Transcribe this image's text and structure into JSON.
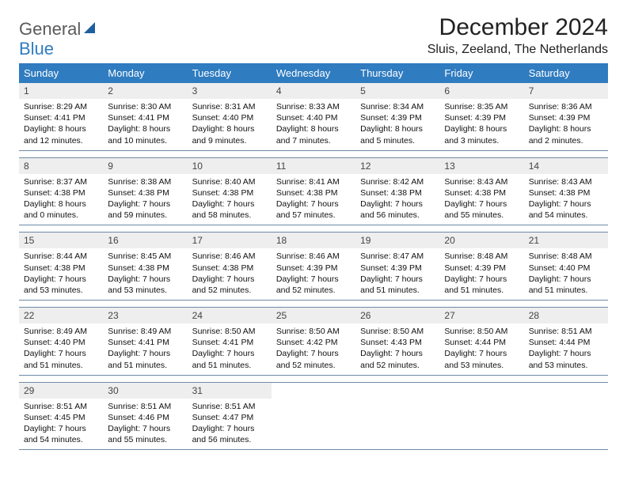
{
  "logo": {
    "general": "General",
    "blue": "Blue"
  },
  "title": "December 2024",
  "location": "Sluis, Zeeland, The Netherlands",
  "colors": {
    "header_bg": "#2f7cc0",
    "header_text": "#ffffff",
    "daynum_bg": "#eeeeee",
    "daynum_text": "#444444",
    "rule": "#6d8aa8",
    "body_text": "#111111",
    "logo_general": "#5a5a5a",
    "logo_blue": "#2f7cc0",
    "logo_shape": "#1e5f9e"
  },
  "dow": [
    "Sunday",
    "Monday",
    "Tuesday",
    "Wednesday",
    "Thursday",
    "Friday",
    "Saturday"
  ],
  "weeks": [
    [
      {
        "n": "1",
        "sr": "8:29 AM",
        "ss": "4:41 PM",
        "dl": "8 hours and 12 minutes."
      },
      {
        "n": "2",
        "sr": "8:30 AM",
        "ss": "4:41 PM",
        "dl": "8 hours and 10 minutes."
      },
      {
        "n": "3",
        "sr": "8:31 AM",
        "ss": "4:40 PM",
        "dl": "8 hours and 9 minutes."
      },
      {
        "n": "4",
        "sr": "8:33 AM",
        "ss": "4:40 PM",
        "dl": "8 hours and 7 minutes."
      },
      {
        "n": "5",
        "sr": "8:34 AM",
        "ss": "4:39 PM",
        "dl": "8 hours and 5 minutes."
      },
      {
        "n": "6",
        "sr": "8:35 AM",
        "ss": "4:39 PM",
        "dl": "8 hours and 3 minutes."
      },
      {
        "n": "7",
        "sr": "8:36 AM",
        "ss": "4:39 PM",
        "dl": "8 hours and 2 minutes."
      }
    ],
    [
      {
        "n": "8",
        "sr": "8:37 AM",
        "ss": "4:38 PM",
        "dl": "8 hours and 0 minutes."
      },
      {
        "n": "9",
        "sr": "8:38 AM",
        "ss": "4:38 PM",
        "dl": "7 hours and 59 minutes."
      },
      {
        "n": "10",
        "sr": "8:40 AM",
        "ss": "4:38 PM",
        "dl": "7 hours and 58 minutes."
      },
      {
        "n": "11",
        "sr": "8:41 AM",
        "ss": "4:38 PM",
        "dl": "7 hours and 57 minutes."
      },
      {
        "n": "12",
        "sr": "8:42 AM",
        "ss": "4:38 PM",
        "dl": "7 hours and 56 minutes."
      },
      {
        "n": "13",
        "sr": "8:43 AM",
        "ss": "4:38 PM",
        "dl": "7 hours and 55 minutes."
      },
      {
        "n": "14",
        "sr": "8:43 AM",
        "ss": "4:38 PM",
        "dl": "7 hours and 54 minutes."
      }
    ],
    [
      {
        "n": "15",
        "sr": "8:44 AM",
        "ss": "4:38 PM",
        "dl": "7 hours and 53 minutes."
      },
      {
        "n": "16",
        "sr": "8:45 AM",
        "ss": "4:38 PM",
        "dl": "7 hours and 53 minutes."
      },
      {
        "n": "17",
        "sr": "8:46 AM",
        "ss": "4:38 PM",
        "dl": "7 hours and 52 minutes."
      },
      {
        "n": "18",
        "sr": "8:46 AM",
        "ss": "4:39 PM",
        "dl": "7 hours and 52 minutes."
      },
      {
        "n": "19",
        "sr": "8:47 AM",
        "ss": "4:39 PM",
        "dl": "7 hours and 51 minutes."
      },
      {
        "n": "20",
        "sr": "8:48 AM",
        "ss": "4:39 PM",
        "dl": "7 hours and 51 minutes."
      },
      {
        "n": "21",
        "sr": "8:48 AM",
        "ss": "4:40 PM",
        "dl": "7 hours and 51 minutes."
      }
    ],
    [
      {
        "n": "22",
        "sr": "8:49 AM",
        "ss": "4:40 PM",
        "dl": "7 hours and 51 minutes."
      },
      {
        "n": "23",
        "sr": "8:49 AM",
        "ss": "4:41 PM",
        "dl": "7 hours and 51 minutes."
      },
      {
        "n": "24",
        "sr": "8:50 AM",
        "ss": "4:41 PM",
        "dl": "7 hours and 51 minutes."
      },
      {
        "n": "25",
        "sr": "8:50 AM",
        "ss": "4:42 PM",
        "dl": "7 hours and 52 minutes."
      },
      {
        "n": "26",
        "sr": "8:50 AM",
        "ss": "4:43 PM",
        "dl": "7 hours and 52 minutes."
      },
      {
        "n": "27",
        "sr": "8:50 AM",
        "ss": "4:44 PM",
        "dl": "7 hours and 53 minutes."
      },
      {
        "n": "28",
        "sr": "8:51 AM",
        "ss": "4:44 PM",
        "dl": "7 hours and 53 minutes."
      }
    ],
    [
      {
        "n": "29",
        "sr": "8:51 AM",
        "ss": "4:45 PM",
        "dl": "7 hours and 54 minutes."
      },
      {
        "n": "30",
        "sr": "8:51 AM",
        "ss": "4:46 PM",
        "dl": "7 hours and 55 minutes."
      },
      {
        "n": "31",
        "sr": "8:51 AM",
        "ss": "4:47 PM",
        "dl": "7 hours and 56 minutes."
      },
      {
        "empty": true
      },
      {
        "empty": true
      },
      {
        "empty": true
      },
      {
        "empty": true
      }
    ]
  ],
  "labels": {
    "sunrise": "Sunrise:",
    "sunset": "Sunset:",
    "daylight": "Daylight:"
  }
}
